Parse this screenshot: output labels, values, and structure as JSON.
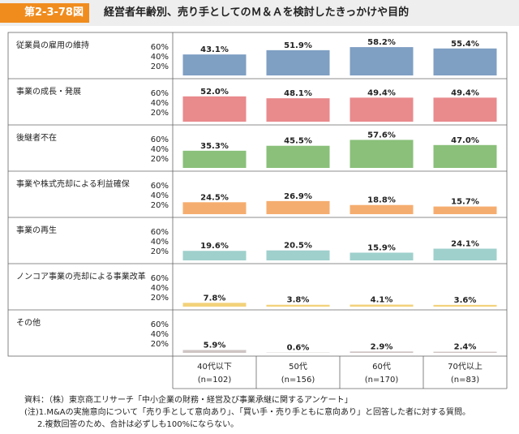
{
  "figure": {
    "number": "第2-3-78図",
    "title": "経営者年齢別、売り手としてのＭ＆Ａを検討したきっかけや目的"
  },
  "chart_data": {
    "type": "bar",
    "categories": [
      "40代以下",
      "50代",
      "60代",
      "70代以上"
    ],
    "category_n": [
      "(n=102)",
      "(n=156)",
      "(n=170)",
      "(n=83)"
    ],
    "yticks": [
      "60%",
      "40%",
      "20%"
    ],
    "ylim": [
      0,
      70
    ],
    "series": [
      {
        "name": "従業員の雇用の維持",
        "color": "#7f9fc3",
        "values": [
          43.1,
          51.9,
          58.2,
          55.4
        ],
        "labels": [
          "43.1%",
          "51.9%",
          "58.2%",
          "55.4%"
        ]
      },
      {
        "name": "事業の成長・発展",
        "color": "#e98a8d",
        "values": [
          52.0,
          48.1,
          49.4,
          49.4
        ],
        "labels": [
          "52.0%",
          "48.1%",
          "49.4%",
          "49.4%"
        ]
      },
      {
        "name": "後継者不在",
        "color": "#8ac07a",
        "values": [
          35.3,
          45.5,
          57.6,
          47.0
        ],
        "labels": [
          "35.3%",
          "45.5%",
          "57.6%",
          "47.0%"
        ]
      },
      {
        "name": "事業や株式売却による利益確保",
        "color": "#f5ad6f",
        "values": [
          24.5,
          26.9,
          18.8,
          15.7
        ],
        "labels": [
          "24.5%",
          "26.9%",
          "18.8%",
          "15.7%"
        ]
      },
      {
        "name": "事業の再生",
        "color": "#9fd0cc",
        "values": [
          19.6,
          20.5,
          15.9,
          24.1
        ],
        "labels": [
          "19.6%",
          "20.5%",
          "15.9%",
          "24.1%"
        ]
      },
      {
        "name": "ノンコア事業の売却による事業改革",
        "color": "#f3d27a",
        "values": [
          7.8,
          3.8,
          4.1,
          3.6
        ],
        "labels": [
          "7.8%",
          "3.8%",
          "4.1%",
          "3.6%"
        ]
      },
      {
        "name": "その他",
        "color": "#cfc4c4",
        "values": [
          5.9,
          0.6,
          2.9,
          2.4
        ],
        "labels": [
          "5.9%",
          "0.6%",
          "2.9%",
          "2.4%"
        ]
      }
    ]
  },
  "notes": {
    "source": "資料：（株）東京商工リサーチ「中小企業の財務・経営及び事業承継に関するアンケート」",
    "note1": "(注)1.M&Aの実施意向について「売り手として意向あり」、「買い手・売り手ともに意向あり」と回答した者に対する質問。",
    "note2": "2.複数回答のため、合計は必ずしも100%にならない。"
  }
}
